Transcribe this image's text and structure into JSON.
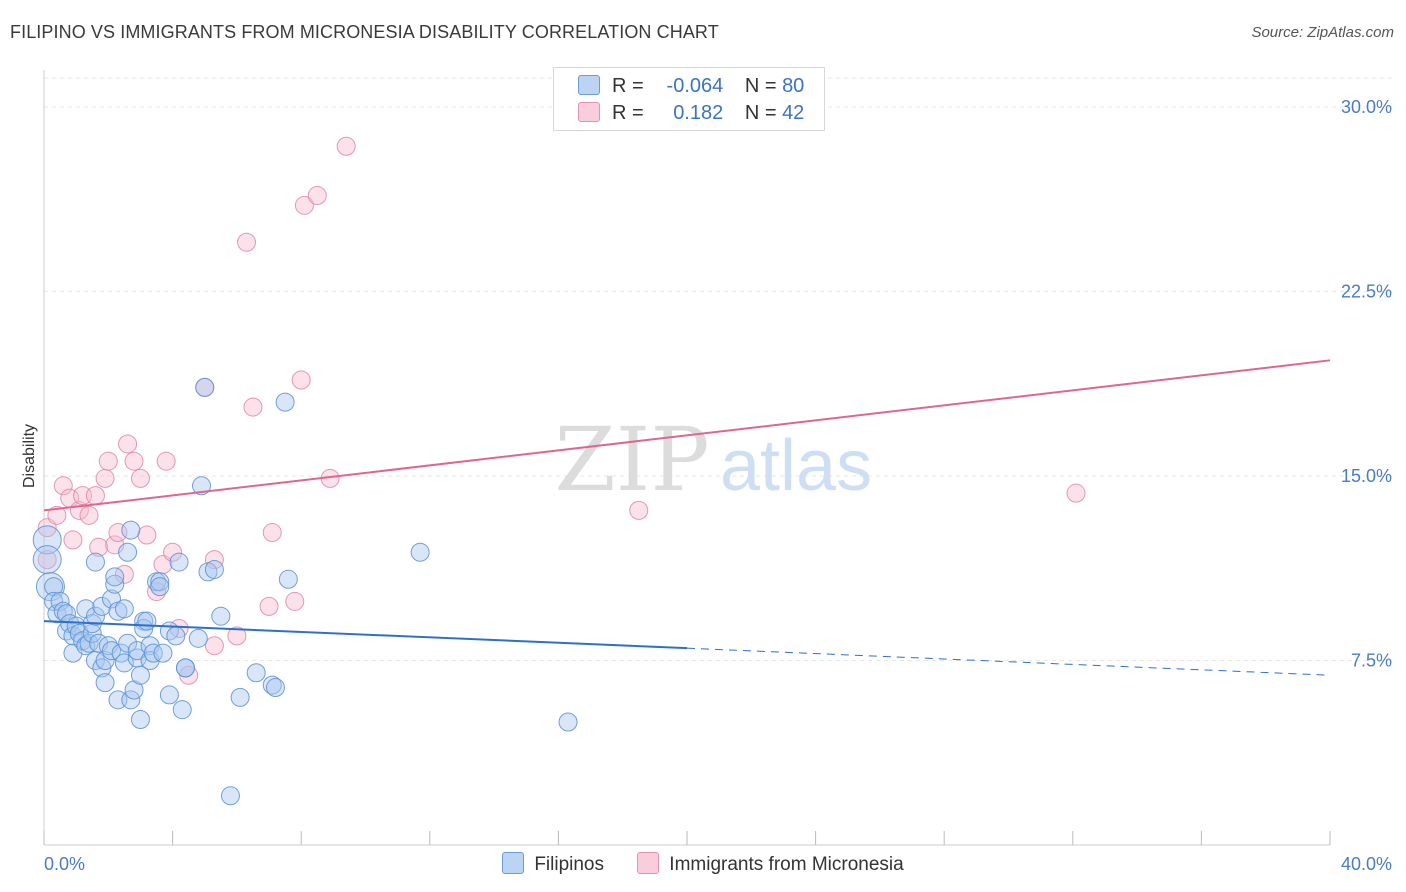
{
  "title": "FILIPINO VS IMMIGRANTS FROM MICRONESIA DISABILITY CORRELATION CHART",
  "source": "Source: ZipAtlas.com",
  "watermark": {
    "zip": "ZIP",
    "atlas": "atlas"
  },
  "legend": [
    {
      "r_label": "R =",
      "r_value": "-0.064",
      "n_label": "N =",
      "n_value": "80"
    },
    {
      "r_label": "R =",
      "r_value": "0.182",
      "n_label": "N =",
      "n_value": "42"
    }
  ],
  "colors": {
    "blue_fill": "#a9c8f0",
    "blue_stroke": "#5b8fd6",
    "blue_line": "#2f6fcb",
    "pink_fill": "#f6bcd0",
    "pink_stroke": "#e07fa3",
    "pink_line": "#e0668f",
    "grid": "#e6e6e6",
    "tick_text": "#4a7cc4"
  },
  "chart_data": {
    "type": "scatter",
    "title": "FILIPINO VS IMMIGRANTS FROM MICRONESIA DISABILITY CORRELATION CHART",
    "xlabel": "",
    "ylabel": "Disability",
    "xlim": [
      0,
      40
    ],
    "ylim": [
      0,
      31.5
    ],
    "x_tick_labels": [
      "0.0%",
      "40.0%"
    ],
    "y_ticks": [
      7.5,
      15.0,
      22.5,
      30.0
    ],
    "y_tick_labels": [
      "7.5%",
      "15.0%",
      "22.5%",
      "30.0%"
    ],
    "grid": true,
    "series": [
      {
        "name": "Filipinos",
        "color": "blue",
        "r": -0.064,
        "n": 80,
        "trend": {
          "x0": 0,
          "y0": 9.1,
          "x1": 20,
          "y1": 8.0,
          "dash_x1": 40,
          "dash_y1": 6.9
        },
        "points": [
          [
            0.1,
            12.4
          ],
          [
            0.1,
            11.6
          ],
          [
            0.2,
            10.5
          ],
          [
            0.3,
            10.5
          ],
          [
            0.3,
            9.9
          ],
          [
            0.4,
            9.4
          ],
          [
            0.5,
            9.9
          ],
          [
            0.6,
            9.5
          ],
          [
            0.7,
            9.4
          ],
          [
            0.7,
            8.7
          ],
          [
            0.8,
            9.0
          ],
          [
            0.9,
            7.8
          ],
          [
            0.9,
            8.5
          ],
          [
            1.0,
            8.9
          ],
          [
            1.1,
            8.6
          ],
          [
            1.2,
            8.3
          ],
          [
            1.3,
            8.1
          ],
          [
            1.3,
            9.6
          ],
          [
            1.4,
            8.2
          ],
          [
            1.5,
            8.6
          ],
          [
            1.5,
            9.0
          ],
          [
            1.6,
            7.5
          ],
          [
            1.6,
            9.3
          ],
          [
            1.6,
            11.5
          ],
          [
            1.7,
            8.2
          ],
          [
            1.8,
            9.7
          ],
          [
            1.8,
            7.2
          ],
          [
            1.9,
            7.5
          ],
          [
            1.9,
            6.6
          ],
          [
            2.0,
            8.1
          ],
          [
            2.1,
            7.9
          ],
          [
            2.1,
            10.0
          ],
          [
            2.2,
            10.6
          ],
          [
            2.2,
            10.9
          ],
          [
            2.3,
            9.5
          ],
          [
            2.3,
            5.9
          ],
          [
            2.4,
            7.8
          ],
          [
            2.5,
            7.4
          ],
          [
            2.5,
            9.6
          ],
          [
            2.6,
            8.2
          ],
          [
            2.6,
            11.9
          ],
          [
            2.7,
            12.8
          ],
          [
            2.7,
            5.9
          ],
          [
            2.8,
            6.3
          ],
          [
            2.9,
            7.6
          ],
          [
            2.9,
            7.9
          ],
          [
            3.0,
            6.9
          ],
          [
            3.0,
            5.1
          ],
          [
            3.1,
            9.1
          ],
          [
            3.1,
            8.8
          ],
          [
            3.2,
            9.1
          ],
          [
            3.3,
            8.1
          ],
          [
            3.3,
            7.5
          ],
          [
            3.4,
            7.8
          ],
          [
            3.5,
            10.7
          ],
          [
            3.6,
            10.7
          ],
          [
            3.6,
            10.5
          ],
          [
            3.7,
            7.8
          ],
          [
            3.9,
            8.7
          ],
          [
            3.9,
            6.1
          ],
          [
            4.1,
            8.5
          ],
          [
            4.2,
            11.5
          ],
          [
            4.3,
            5.5
          ],
          [
            4.4,
            7.2
          ],
          [
            4.4,
            7.2
          ],
          [
            4.8,
            8.4
          ],
          [
            4.9,
            14.6
          ],
          [
            5.0,
            18.6
          ],
          [
            5.1,
            11.1
          ],
          [
            5.3,
            11.2
          ],
          [
            5.5,
            9.3
          ],
          [
            5.8,
            2.0
          ],
          [
            6.1,
            6.0
          ],
          [
            6.6,
            7.0
          ],
          [
            7.1,
            6.5
          ],
          [
            7.2,
            6.4
          ],
          [
            7.5,
            18.0
          ],
          [
            7.6,
            10.8
          ],
          [
            11.7,
            11.9
          ],
          [
            16.3,
            5.0
          ]
        ]
      },
      {
        "name": "Immigrants from Micronesia",
        "color": "pink",
        "r": 0.182,
        "n": 42,
        "trend": {
          "x0": 0,
          "y0": 13.6,
          "x1": 40,
          "y1": 19.7
        },
        "points": [
          [
            0.1,
            12.9
          ],
          [
            0.1,
            11.6
          ],
          [
            0.4,
            13.4
          ],
          [
            0.6,
            14.6
          ],
          [
            0.8,
            14.1
          ],
          [
            0.9,
            12.4
          ],
          [
            1.1,
            13.6
          ],
          [
            1.2,
            14.2
          ],
          [
            1.4,
            13.4
          ],
          [
            1.6,
            14.2
          ],
          [
            1.7,
            12.1
          ],
          [
            1.9,
            14.9
          ],
          [
            2.0,
            15.6
          ],
          [
            2.2,
            12.2
          ],
          [
            2.3,
            12.7
          ],
          [
            2.5,
            11.0
          ],
          [
            2.6,
            16.3
          ],
          [
            2.8,
            15.6
          ],
          [
            3.0,
            14.9
          ],
          [
            3.2,
            12.6
          ],
          [
            3.5,
            10.3
          ],
          [
            3.7,
            11.4
          ],
          [
            3.8,
            15.6
          ],
          [
            4.0,
            11.9
          ],
          [
            4.2,
            8.8
          ],
          [
            4.5,
            6.9
          ],
          [
            5.0,
            18.6
          ],
          [
            5.3,
            8.1
          ],
          [
            5.3,
            11.6
          ],
          [
            6.0,
            8.5
          ],
          [
            6.3,
            24.5
          ],
          [
            6.5,
            17.8
          ],
          [
            7.0,
            9.7
          ],
          [
            7.1,
            12.7
          ],
          [
            7.8,
            9.9
          ],
          [
            8.0,
            18.9
          ],
          [
            8.1,
            26.0
          ],
          [
            8.5,
            26.4
          ],
          [
            8.9,
            14.9
          ],
          [
            9.4,
            28.4
          ],
          [
            18.5,
            13.6
          ],
          [
            32.1,
            14.3
          ]
        ]
      }
    ]
  }
}
